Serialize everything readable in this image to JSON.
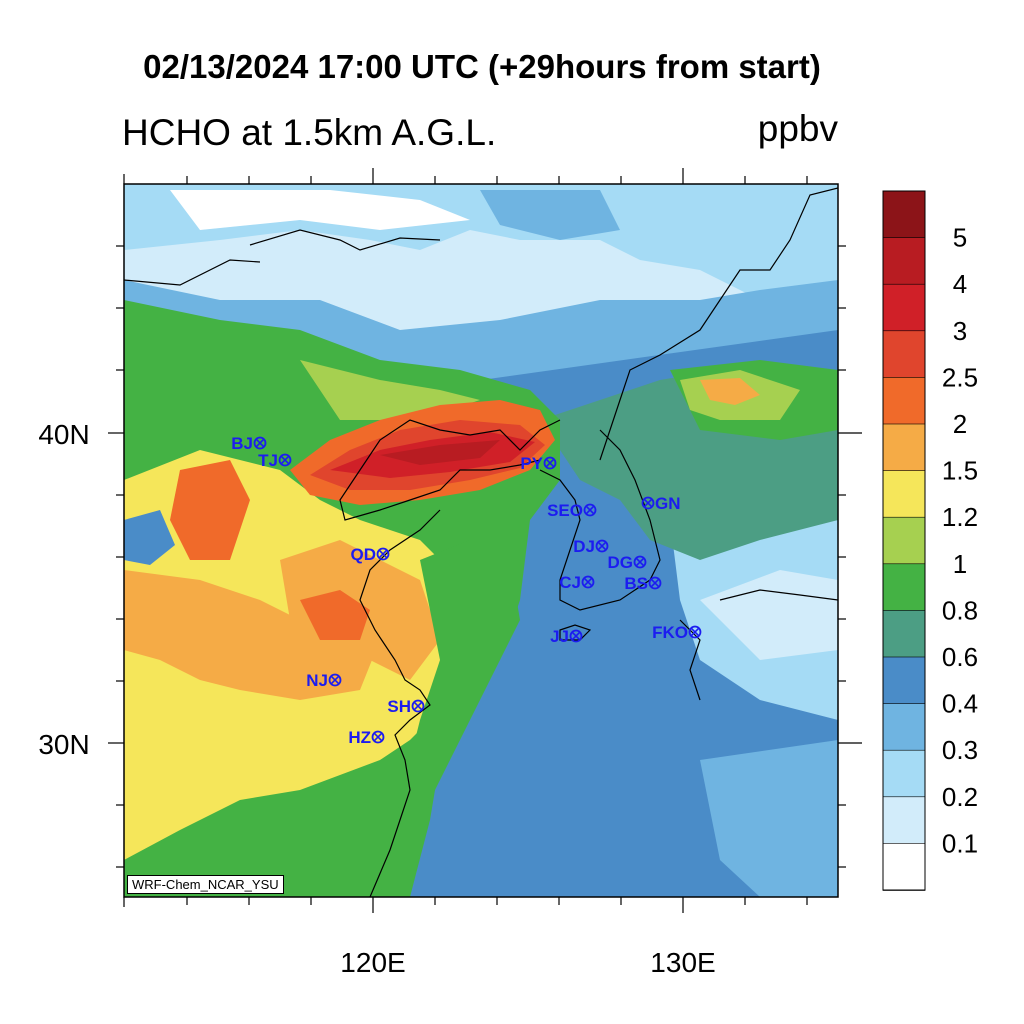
{
  "header": {
    "title": "02/13/2024 17:00 UTC (+29hours from start)",
    "variable": "HCHO at 1.5km A.G.L.",
    "units": "ppbv"
  },
  "axes": {
    "lat_labels": [
      "40N",
      "30N"
    ],
    "lon_labels": [
      "120E",
      "130E"
    ]
  },
  "colorbar": {
    "levels": [
      "0.1",
      "0.2",
      "0.3",
      "0.4",
      "0.6",
      "0.8",
      "1",
      "1.2",
      "1.5",
      "2",
      "2.5",
      "3",
      "4",
      "5"
    ],
    "colors": [
      "#ffffff",
      "#d2ecfa",
      "#a5dbf5",
      "#6fb4e1",
      "#4a8cc8",
      "#4c9e84",
      "#44b244",
      "#a6d050",
      "#f5e65a",
      "#f5ab46",
      "#f06a2a",
      "#e0452d",
      "#d02028",
      "#b81c22",
      "#8c1418"
    ]
  },
  "cities": [
    {
      "name": "BJ"
    },
    {
      "name": "TJ"
    },
    {
      "name": "PY"
    },
    {
      "name": "SEO"
    },
    {
      "name": "GN"
    },
    {
      "name": "QD"
    },
    {
      "name": "DJ"
    },
    {
      "name": "DG"
    },
    {
      "name": "CJ"
    },
    {
      "name": "BS"
    },
    {
      "name": "JJ"
    },
    {
      "name": "FKO"
    },
    {
      "name": "NJ"
    },
    {
      "name": "SH"
    },
    {
      "name": "HZ"
    }
  ],
  "credit": "WRF-Chem_NCAR_YSU"
}
